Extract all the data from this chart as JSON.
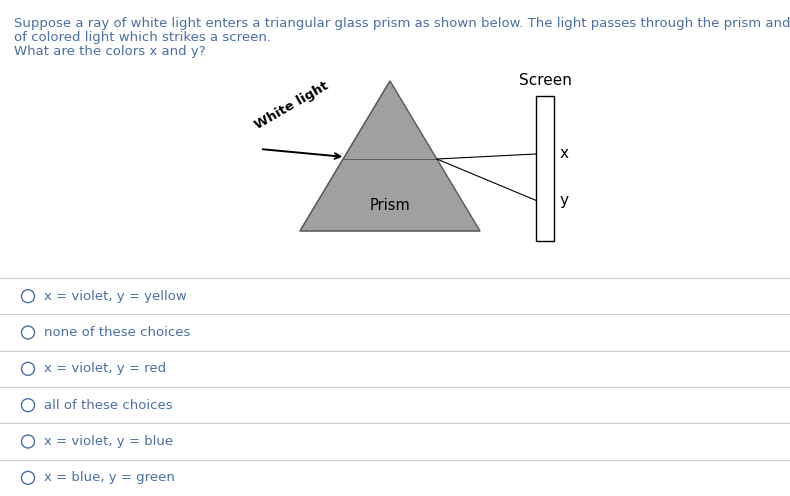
{
  "bg_color": "#ffffff",
  "text_color": "#4a6fa5",
  "line_color": "#cccccc",
  "description_lines": [
    "Suppose a ray of white light enters a triangular glass prism as shown below. The light passes through the prism and emerges as a band",
    "of colored light which strikes a screen.",
    "What are the colors x and y?"
  ],
  "choices": [
    "x = violet, y = yellow",
    "none of these choices",
    "x = violet, y = red",
    "all of these choices",
    "x = violet, y = blue",
    "x = blue, y = green"
  ],
  "desc_fontsize": 9.5,
  "choice_fontsize": 9.5,
  "diagram_fontsize": 10
}
